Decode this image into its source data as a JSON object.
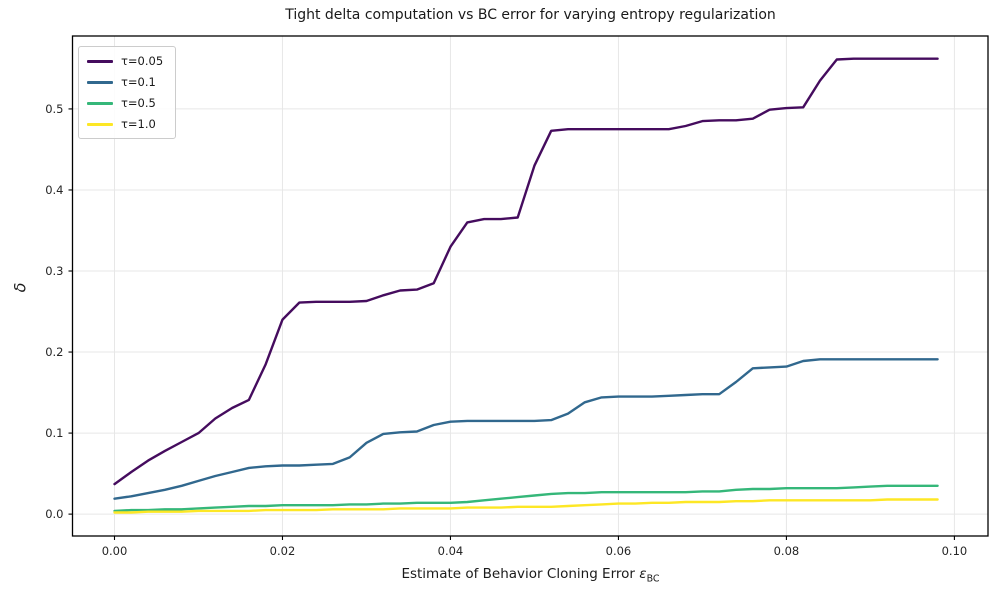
{
  "chart_data": {
    "type": "line",
    "title": "Tight delta computation vs BC error for varying entropy regularization",
    "xlabel_prefix": "Estimate of Behavior Cloning Error ",
    "xlabel_symbol": "ε",
    "xlabel_subscript": "BC",
    "ylabel": "δ",
    "xlim": [
      -0.005,
      0.104
    ],
    "ylim": [
      -0.027,
      0.59
    ],
    "xticks": [
      0.0,
      0.02,
      0.04,
      0.06,
      0.08,
      0.1
    ],
    "xtick_labels": [
      "0.00",
      "0.02",
      "0.04",
      "0.06",
      "0.08",
      "0.10"
    ],
    "yticks": [
      0.0,
      0.1,
      0.2,
      0.3,
      0.4,
      0.5
    ],
    "ytick_labels": [
      "0.0",
      "0.1",
      "0.2",
      "0.3",
      "0.4",
      "0.5"
    ],
    "grid": true,
    "grid_color": "#e7e7e7",
    "axis_color": "#000000",
    "tick_label_color": "#262626",
    "legend_position": "upper left",
    "x": [
      0.0,
      0.002,
      0.004,
      0.006,
      0.008,
      0.01,
      0.012,
      0.014,
      0.016,
      0.018,
      0.02,
      0.022,
      0.024,
      0.026,
      0.028,
      0.03,
      0.032,
      0.034,
      0.036,
      0.038,
      0.04,
      0.042,
      0.044,
      0.046,
      0.048,
      0.05,
      0.052,
      0.054,
      0.056,
      0.058,
      0.06,
      0.062,
      0.064,
      0.066,
      0.068,
      0.07,
      0.072,
      0.074,
      0.076,
      0.078,
      0.08,
      0.082,
      0.084,
      0.086,
      0.088,
      0.09,
      0.092,
      0.094,
      0.096,
      0.098
    ],
    "series": [
      {
        "name": "τ=0.05",
        "color": "#450c5e",
        "values": [
          0.037,
          0.052,
          0.066,
          0.078,
          0.089,
          0.1,
          0.118,
          0.131,
          0.141,
          0.185,
          0.24,
          0.261,
          0.262,
          0.262,
          0.262,
          0.263,
          0.27,
          0.276,
          0.277,
          0.285,
          0.33,
          0.36,
          0.364,
          0.364,
          0.366,
          0.43,
          0.473,
          0.475,
          0.475,
          0.475,
          0.475,
          0.475,
          0.475,
          0.475,
          0.479,
          0.485,
          0.486,
          0.486,
          0.488,
          0.499,
          0.501,
          0.502,
          0.535,
          0.561,
          0.562,
          0.562,
          0.562,
          0.562,
          0.562,
          0.562
        ]
      },
      {
        "name": "τ=0.1",
        "color": "#31688e",
        "values": [
          0.019,
          0.022,
          0.026,
          0.03,
          0.035,
          0.041,
          0.047,
          0.052,
          0.057,
          0.059,
          0.06,
          0.06,
          0.061,
          0.062,
          0.07,
          0.088,
          0.099,
          0.101,
          0.102,
          0.11,
          0.114,
          0.115,
          0.115,
          0.115,
          0.115,
          0.115,
          0.116,
          0.124,
          0.138,
          0.144,
          0.145,
          0.145,
          0.145,
          0.146,
          0.147,
          0.148,
          0.148,
          0.163,
          0.18,
          0.181,
          0.182,
          0.189,
          0.191,
          0.191,
          0.191,
          0.191,
          0.191,
          0.191,
          0.191,
          0.191
        ]
      },
      {
        "name": "τ=0.5",
        "color": "#35b779",
        "values": [
          0.004,
          0.005,
          0.005,
          0.006,
          0.006,
          0.007,
          0.008,
          0.009,
          0.01,
          0.01,
          0.011,
          0.011,
          0.011,
          0.011,
          0.012,
          0.012,
          0.013,
          0.013,
          0.014,
          0.014,
          0.014,
          0.015,
          0.017,
          0.019,
          0.021,
          0.023,
          0.025,
          0.026,
          0.026,
          0.027,
          0.027,
          0.027,
          0.027,
          0.027,
          0.027,
          0.028,
          0.028,
          0.03,
          0.031,
          0.031,
          0.032,
          0.032,
          0.032,
          0.032,
          0.033,
          0.034,
          0.035,
          0.035,
          0.035,
          0.035
        ]
      },
      {
        "name": "τ=1.0",
        "color": "#fde725",
        "values": [
          0.002,
          0.002,
          0.003,
          0.003,
          0.003,
          0.004,
          0.004,
          0.004,
          0.004,
          0.005,
          0.005,
          0.005,
          0.005,
          0.006,
          0.006,
          0.006,
          0.006,
          0.007,
          0.007,
          0.007,
          0.007,
          0.008,
          0.008,
          0.008,
          0.009,
          0.009,
          0.009,
          0.01,
          0.011,
          0.012,
          0.013,
          0.013,
          0.014,
          0.014,
          0.015,
          0.015,
          0.015,
          0.016,
          0.016,
          0.017,
          0.017,
          0.017,
          0.017,
          0.017,
          0.017,
          0.017,
          0.018,
          0.018,
          0.018,
          0.018
        ]
      }
    ]
  }
}
